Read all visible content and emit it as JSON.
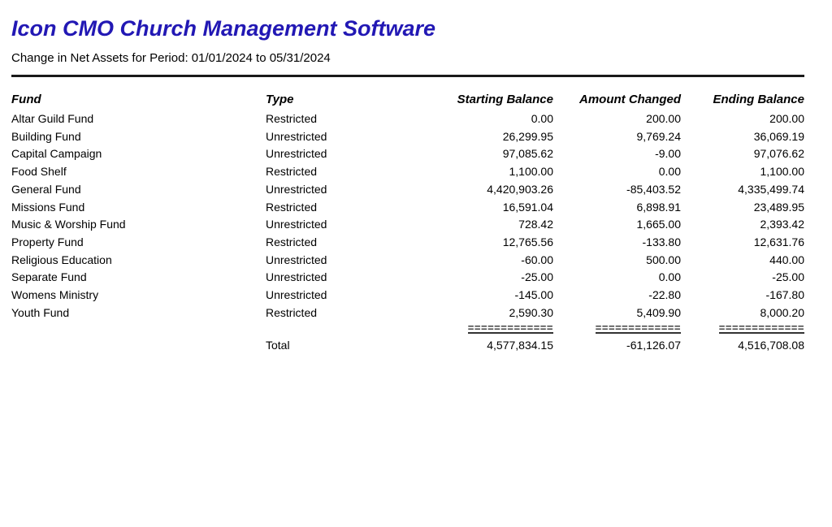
{
  "header": {
    "title": "Icon CMO Church Management Software",
    "subtitle": "Change in Net Assets for Period: 01/01/2024 to 05/31/2024"
  },
  "colors": {
    "brand_title": "#2218b4",
    "text": "#000000",
    "rule": "#1a1a1a",
    "separator": "#333333"
  },
  "table": {
    "columns": [
      "Fund",
      "Type",
      "Starting Balance",
      "Amount Changed",
      "Ending Balance"
    ],
    "rows": [
      {
        "fund": "Altar Guild Fund",
        "type": "Restricted",
        "starting": "0.00",
        "changed": "200.00",
        "ending": "200.00"
      },
      {
        "fund": "Building Fund",
        "type": "Unrestricted",
        "starting": "26,299.95",
        "changed": "9,769.24",
        "ending": "36,069.19"
      },
      {
        "fund": "Capital Campaign",
        "type": "Unrestricted",
        "starting": "97,085.62",
        "changed": "-9.00",
        "ending": "97,076.62"
      },
      {
        "fund": "Food Shelf",
        "type": "Restricted",
        "starting": "1,100.00",
        "changed": "0.00",
        "ending": "1,100.00"
      },
      {
        "fund": "General Fund",
        "type": "Unrestricted",
        "starting": "4,420,903.26",
        "changed": "-85,403.52",
        "ending": "4,335,499.74"
      },
      {
        "fund": "Missions Fund",
        "type": "Restricted",
        "starting": "16,591.04",
        "changed": "6,898.91",
        "ending": "23,489.95"
      },
      {
        "fund": "Music & Worship Fund",
        "type": "Unrestricted",
        "starting": "728.42",
        "changed": "1,665.00",
        "ending": "2,393.42"
      },
      {
        "fund": "Property Fund",
        "type": "Restricted",
        "starting": "12,765.56",
        "changed": "-133.80",
        "ending": "12,631.76"
      },
      {
        "fund": "Religious Education",
        "type": "Unrestricted",
        "starting": "-60.00",
        "changed": "500.00",
        "ending": "440.00"
      },
      {
        "fund": "Separate Fund",
        "type": "Unrestricted",
        "starting": "-25.00",
        "changed": "0.00",
        "ending": "-25.00"
      },
      {
        "fund": "Womens Ministry",
        "type": "Unrestricted",
        "starting": "-145.00",
        "changed": "-22.80",
        "ending": "-167.80"
      },
      {
        "fund": "Youth Fund",
        "type": "Restricted",
        "starting": "2,590.30",
        "changed": "5,409.90",
        "ending": "8,000.20"
      }
    ],
    "separator": "=============",
    "total": {
      "label": "Total",
      "starting": "4,577,834.15",
      "changed": "-61,126.07",
      "ending": "4,516,708.08"
    }
  }
}
